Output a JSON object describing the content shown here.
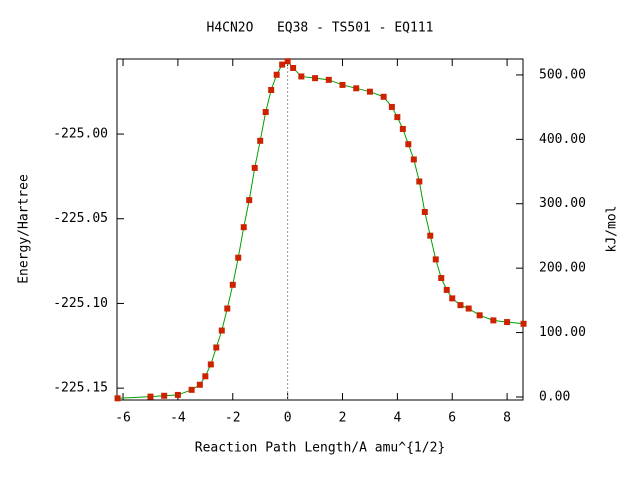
{
  "chart_data": {
    "type": "line",
    "title": "H4CN2O   EQ38 - TS501 - EQ111",
    "x_label": "Reaction Path Length/A amu^{1/2}",
    "y_label": "Energy/Hartree",
    "y2_label": "kJ/mol",
    "xlim": [
      -6.22,
      8.58
    ],
    "xticks": [
      -6,
      -4,
      -2,
      0,
      2,
      4,
      6,
      8
    ],
    "ylim": [
      -225.157,
      -224.9557
    ],
    "yticks": [
      {
        "value": -225.15,
        "label": "-225.15"
      },
      {
        "value": -225.1,
        "label": "-225.10"
      },
      {
        "value": -225.05,
        "label": "-225.05"
      },
      {
        "value": -225.0,
        "label": "-225.00"
      }
    ],
    "y2lim": [
      -4.7,
      524.7
    ],
    "y2ticks": [
      {
        "value": 0,
        "label": "0.00"
      },
      {
        "value": 100,
        "label": "100.00"
      },
      {
        "value": 200,
        "label": "200.00"
      },
      {
        "value": 300,
        "label": "300.00"
      },
      {
        "value": 400,
        "label": "400.00"
      },
      {
        "value": 500,
        "label": "500.00"
      }
    ],
    "vline_x": 0,
    "line_color": "#00a000",
    "marker_color": "#cc2200",
    "x": [
      -6.2,
      -5,
      -4.5,
      -4,
      -3.5,
      -3.2,
      -3,
      -2.8,
      -2.6,
      -2.4,
      -2.2,
      -2,
      -1.8,
      -1.6,
      -1.4,
      -1.2,
      -1.0,
      -0.8,
      -0.6,
      -0.4,
      -0.2,
      0,
      0.2,
      0.5,
      1,
      1.5,
      2,
      2.5,
      3,
      3.5,
      3.8,
      4,
      4.2,
      4.4,
      4.6,
      4.8,
      5,
      5.2,
      5.4,
      5.6,
      5.8,
      6,
      6.3,
      6.6,
      7,
      7.5,
      8,
      8.6
    ],
    "series": [
      {
        "name": "energy",
        "values": [
          -225.156,
          -225.155,
          -225.1545,
          -225.154,
          -225.151,
          -225.148,
          -225.143,
          -225.136,
          -225.126,
          -225.116,
          -225.103,
          -225.089,
          -225.073,
          -225.055,
          -225.039,
          -225.02,
          -225.004,
          -224.987,
          -224.974,
          -224.965,
          -224.959,
          -224.957,
          -224.961,
          -224.966,
          -224.967,
          -224.968,
          -224.971,
          -224.973,
          -224.975,
          -224.978,
          -224.984,
          -224.99,
          -224.997,
          -225.006,
          -225.015,
          -225.028,
          -225.046,
          -225.06,
          -225.074,
          -225.085,
          -225.092,
          -225.097,
          -225.101,
          -225.103,
          -225.107,
          -225.11,
          -225.111,
          -225.112
        ]
      }
    ]
  }
}
